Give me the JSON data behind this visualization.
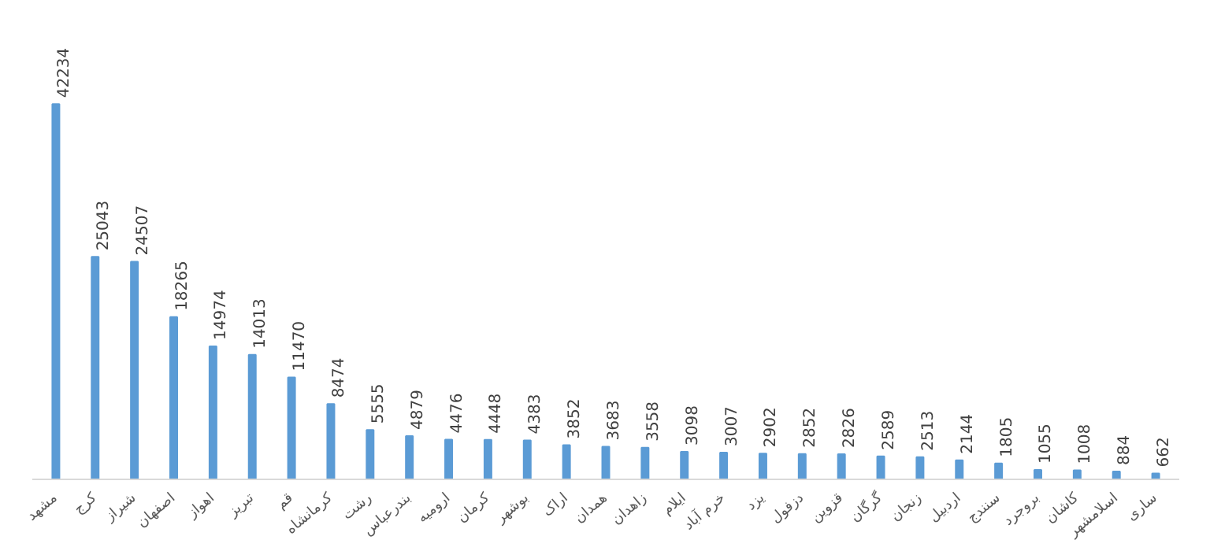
{
  "chart_data": {
    "type": "bar",
    "categories": [
      "مشهد",
      "کرج",
      "شیراز",
      "اصفهان",
      "اهواز",
      "تبریز",
      "قم",
      "کرمانشاه",
      "رشت",
      "بندرعباس",
      "ارومیه",
      "کرمان",
      "بوشهر",
      "اراک",
      "همدان",
      "زاهدان",
      "ایلام",
      "خرم آباد",
      "یزد",
      "دزفول",
      "قزوین",
      "گرگان",
      "زنجان",
      "اردبیل",
      "سنندج",
      "بروجرد",
      "کاشان",
      "اسلامشهر",
      "ساری"
    ],
    "values": [
      42234,
      25043,
      24507,
      18265,
      14974,
      14013,
      11470,
      8474,
      5555,
      4879,
      4476,
      4448,
      4383,
      3852,
      3683,
      3558,
      3098,
      3007,
      2902,
      2852,
      2826,
      2589,
      2513,
      2144,
      1805,
      1055,
      1008,
      884,
      662
    ],
    "color": "#5b9bd5",
    "data_labels": true,
    "grid": false
  }
}
